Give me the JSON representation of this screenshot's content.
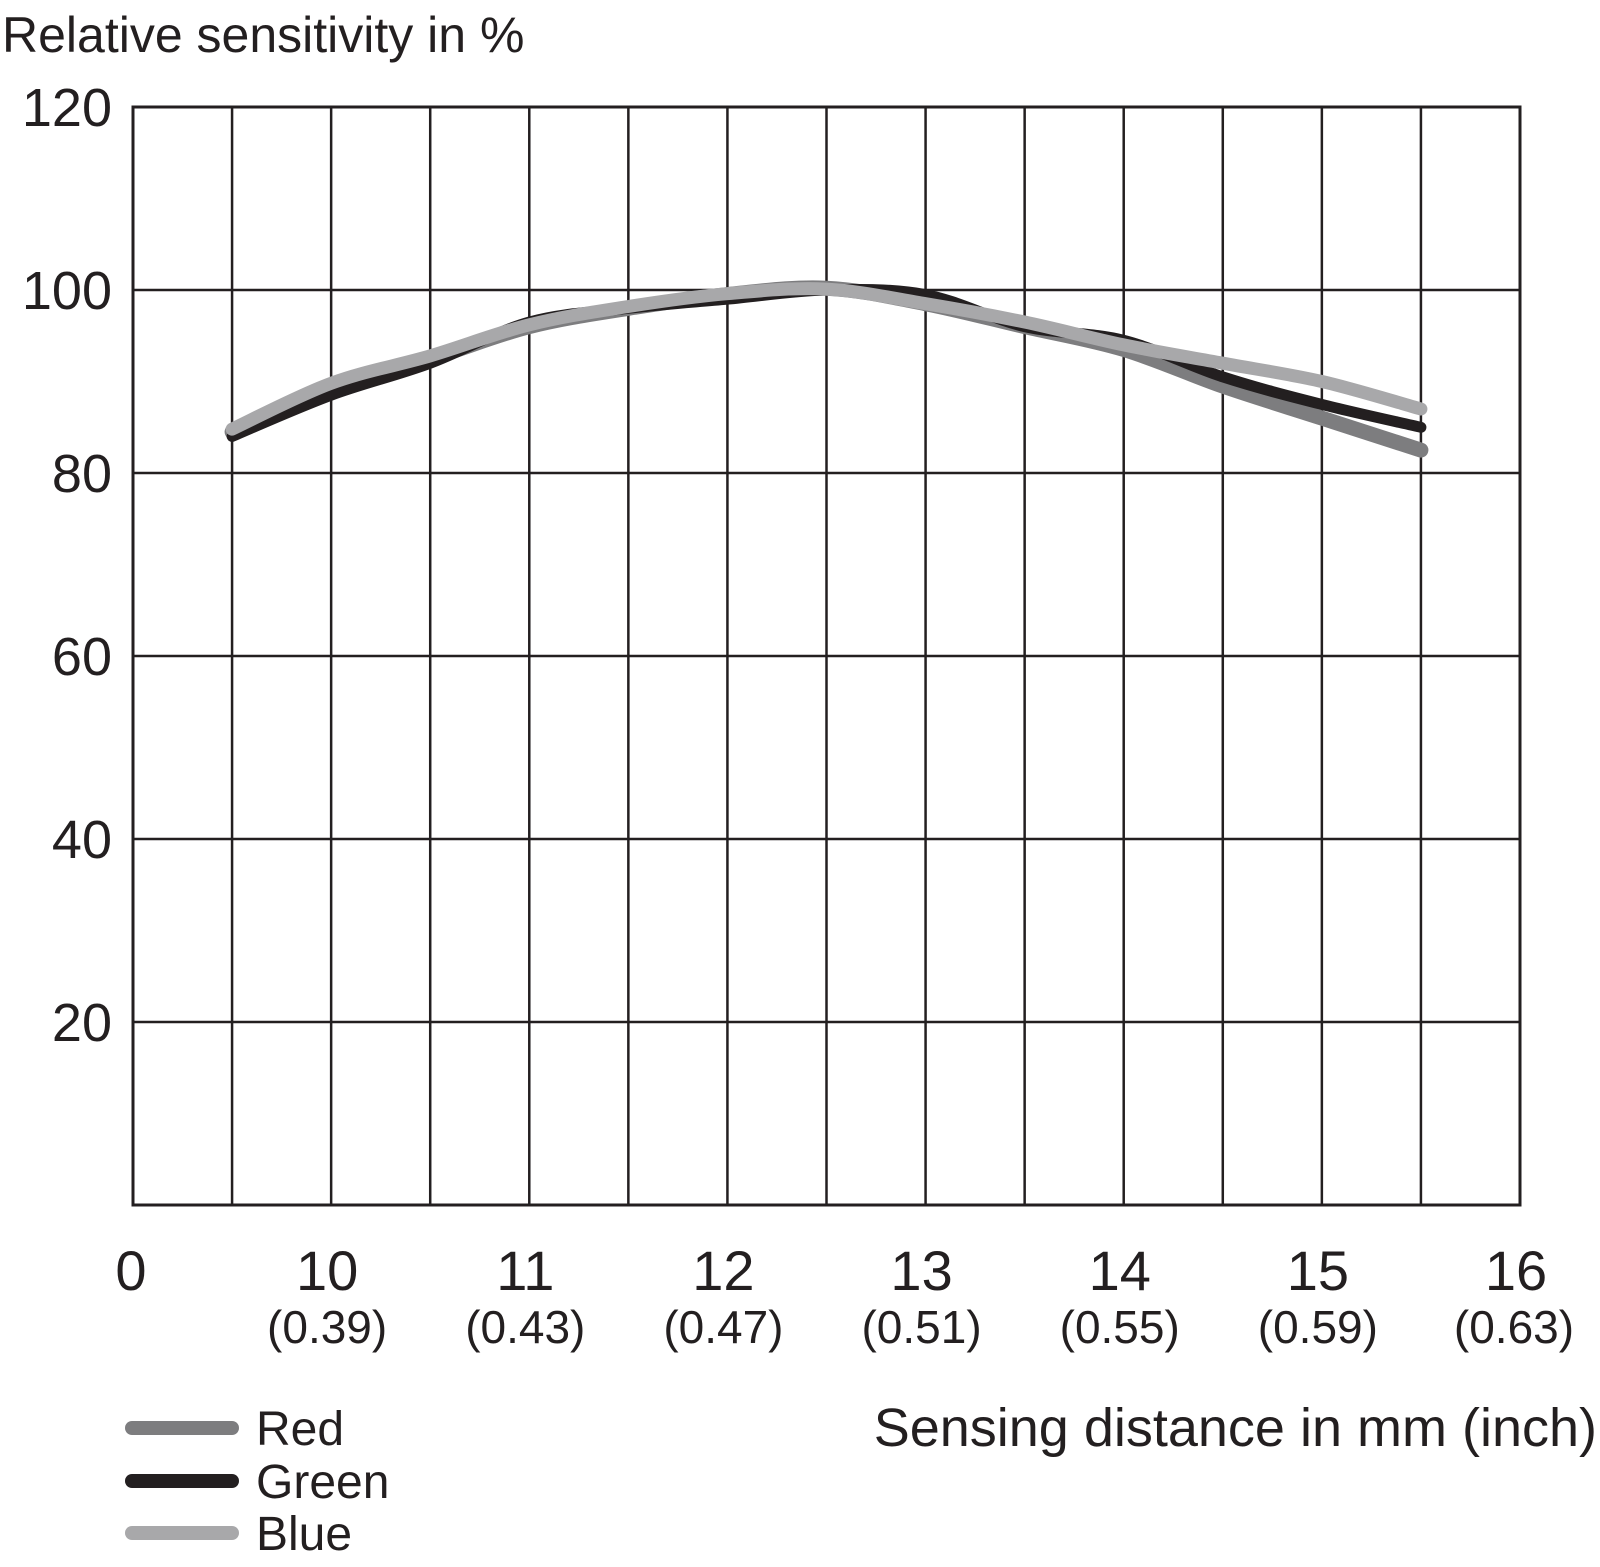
{
  "chart_data": {
    "type": "line",
    "title": "",
    "ylabel": "Relative sensitivity in %",
    "xlabel": "Sensing distance in mm (inch)",
    "xlim": [
      9,
      16
    ],
    "ylim": [
      0,
      120
    ],
    "grid": true,
    "legend_position": "bottom-left",
    "x_ticks": [
      {
        "value": 9,
        "label": "0",
        "sub": ""
      },
      {
        "value": 10,
        "label": "10",
        "sub": "(0.39)"
      },
      {
        "value": 11,
        "label": "11",
        "sub": "(0.43)"
      },
      {
        "value": 12,
        "label": "12",
        "sub": "(0.47)"
      },
      {
        "value": 13,
        "label": "13",
        "sub": "(0.51)"
      },
      {
        "value": 14,
        "label": "14",
        "sub": "(0.55)"
      },
      {
        "value": 15,
        "label": "15",
        "sub": "(0.59)"
      },
      {
        "value": 16,
        "label": "16",
        "sub": "(0.63)"
      }
    ],
    "y_ticks": [
      {
        "value": 20,
        "label": "20"
      },
      {
        "value": 40,
        "label": "40"
      },
      {
        "value": 60,
        "label": "60"
      },
      {
        "value": 80,
        "label": "80"
      },
      {
        "value": 100,
        "label": "100"
      },
      {
        "value": 120,
        "label": "120"
      }
    ],
    "series": [
      {
        "name": "Red",
        "color": "#7d7d7f",
        "x": [
          9.5,
          10.0,
          10.5,
          11.0,
          11.5,
          12.0,
          12.5,
          13.0,
          13.5,
          14.0,
          14.5,
          15.0,
          15.5
        ],
        "y": [
          84.5,
          89.5,
          92.5,
          96.0,
          98.0,
          99.5,
          100.2,
          98.5,
          96.0,
          93.5,
          89.5,
          86.0,
          82.5
        ]
      },
      {
        "name": "Green",
        "color": "#231f20",
        "x": [
          9.5,
          10.0,
          10.5,
          11.0,
          11.5,
          12.0,
          12.5,
          13.0,
          13.5,
          14.0,
          14.5,
          15.0,
          15.5
        ],
        "y": [
          84.0,
          88.5,
          92.0,
          96.5,
          98.0,
          99.0,
          100.0,
          99.5,
          96.0,
          94.5,
          90.5,
          87.5,
          85.0
        ]
      },
      {
        "name": "Blue",
        "color": "#a8a8aa",
        "x": [
          9.5,
          10.0,
          10.5,
          11.0,
          11.5,
          12.0,
          12.5,
          13.0,
          13.5,
          14.0,
          14.5,
          15.0,
          15.5
        ],
        "y": [
          84.8,
          89.8,
          92.8,
          96.2,
          98.2,
          99.6,
          100.1,
          98.5,
          96.5,
          94.0,
          92.0,
          90.0,
          87.0
        ]
      }
    ]
  }
}
